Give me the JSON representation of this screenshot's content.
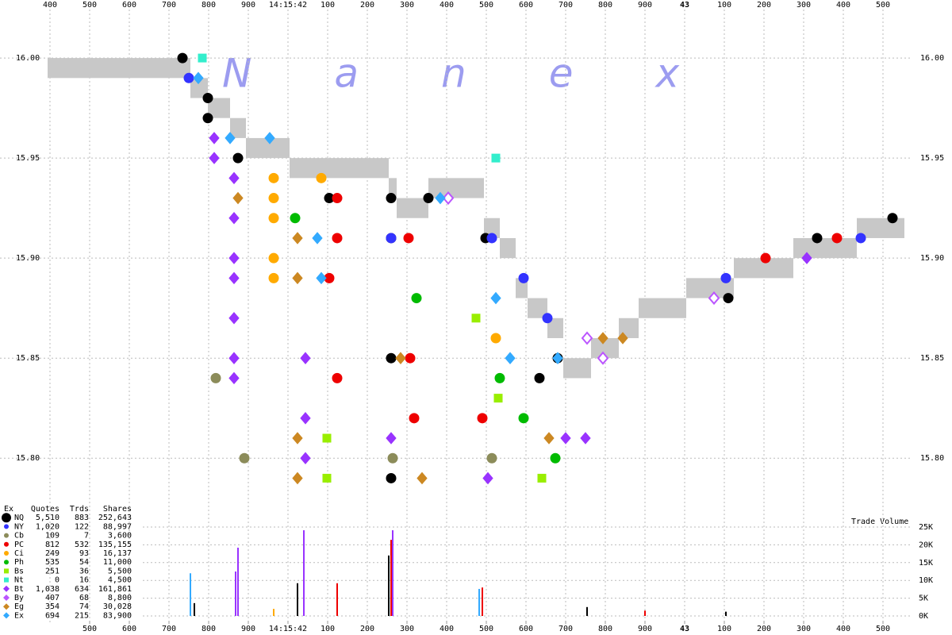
{
  "chart_data": [
    {
      "type": "scatter",
      "watermark": "Nanex",
      "xlim": [
        41.274,
        43.674
      ],
      "ylim": [
        15.787,
        16.029
      ],
      "xticks": [
        {
          "value": 41.4,
          "label": "400"
        },
        {
          "value": 41.5,
          "label": "500"
        },
        {
          "value": 41.6,
          "label": "600"
        },
        {
          "value": 41.7,
          "label": "700"
        },
        {
          "value": 41.8,
          "label": "800"
        },
        {
          "value": 41.9,
          "label": "900"
        },
        {
          "value": 42,
          "label": "14:15:42"
        },
        {
          "value": 42.1,
          "label": "100"
        },
        {
          "value": 42.2,
          "label": "200"
        },
        {
          "value": 42.3,
          "label": "300"
        },
        {
          "value": 42.4,
          "label": "400"
        },
        {
          "value": 42.5,
          "label": "500"
        },
        {
          "value": 42.6,
          "label": "600"
        },
        {
          "value": 42.7,
          "label": "700"
        },
        {
          "value": 42.8,
          "label": "800"
        },
        {
          "value": 42.9,
          "label": "900"
        },
        {
          "value": 43,
          "label": "43"
        },
        {
          "value": 43.1,
          "label": "100"
        },
        {
          "value": 43.2,
          "label": "200"
        },
        {
          "value": 43.3,
          "label": "300"
        },
        {
          "value": 43.4,
          "label": "400"
        },
        {
          "value": 43.5,
          "label": "500"
        }
      ],
      "yticks": [
        {
          "value": 16,
          "label": "16.00"
        },
        {
          "value": 15.95,
          "label": "15.95"
        },
        {
          "value": 15.9,
          "label": "15.90"
        },
        {
          "value": 15.85,
          "label": "15.85"
        },
        {
          "value": 15.8,
          "label": "15.80"
        }
      ],
      "grid": true,
      "nbbo": {
        "color": "#c8c8c8",
        "x": [
          41.394,
          41.754,
          41.798,
          41.854,
          41.894,
          42.004,
          42.254,
          42.274,
          42.354,
          42.494,
          42.534,
          42.574,
          42.604,
          42.654,
          42.694,
          42.764,
          42.834,
          42.884,
          43.004,
          43.124,
          43.274,
          43.434,
          43.554
        ],
        "ask": [
          16.0,
          15.99,
          15.98,
          15.97,
          15.96,
          15.95,
          15.94,
          15.93,
          15.94,
          15.92,
          15.91,
          15.89,
          15.88,
          15.87,
          15.85,
          15.86,
          15.87,
          15.88,
          15.89,
          15.9,
          15.91,
          15.92
        ],
        "bid": [
          15.99,
          15.98,
          15.97,
          15.96,
          15.95,
          15.94,
          15.93,
          15.92,
          15.93,
          15.91,
          15.9,
          15.88,
          15.87,
          15.86,
          15.84,
          15.85,
          15.86,
          15.87,
          15.88,
          15.89,
          15.9,
          15.91
        ]
      },
      "series": [
        {
          "name": "NQ",
          "color": "#000000",
          "marker": "circle",
          "x": [
            41.734,
            41.798,
            41.798,
            41.874,
            42.104,
            42.26,
            42.26,
            42.26,
            42.26,
            42.354,
            42.498,
            42.634,
            42.68,
            43.11,
            43.334,
            43.524
          ],
          "values": [
            16.0,
            15.98,
            15.97,
            15.95,
            15.93,
            15.93,
            15.91,
            15.85,
            15.79,
            15.93,
            15.91,
            15.84,
            15.85,
            15.88,
            15.91,
            15.92
          ]
        },
        {
          "name": "NY",
          "color": "#3333ff",
          "marker": "circle",
          "x": [
            41.75,
            42.26,
            42.514,
            42.594,
            42.654,
            43.104,
            43.444
          ],
          "values": [
            15.99,
            15.91,
            15.91,
            15.89,
            15.87,
            15.89,
            15.91
          ]
        },
        {
          "name": "Cb",
          "color": "#8c8c5a",
          "marker": "circle",
          "x": [
            41.818,
            41.89,
            42.264,
            42.514
          ],
          "values": [
            15.84,
            15.8,
            15.8,
            15.8
          ]
        },
        {
          "name": "PC",
          "color": "#ee0000",
          "marker": "circle",
          "x": [
            42.104,
            42.124,
            42.124,
            42.124,
            42.304,
            42.308,
            42.318,
            42.49,
            43.204,
            43.384
          ],
          "values": [
            15.89,
            15.93,
            15.91,
            15.84,
            15.91,
            15.85,
            15.82,
            15.82,
            15.9,
            15.91
          ]
        },
        {
          "name": "Ci",
          "color": "#ffaa00",
          "marker": "circle",
          "x": [
            41.964,
            41.964,
            41.964,
            41.964,
            41.964,
            42.084,
            42.524
          ],
          "values": [
            15.94,
            15.93,
            15.92,
            15.9,
            15.89,
            15.94,
            15.86
          ]
        },
        {
          "name": "Ph",
          "color": "#00bb00",
          "marker": "circle",
          "x": [
            42.018,
            42.324,
            42.534,
            42.594,
            42.674
          ],
          "values": [
            15.92,
            15.88,
            15.84,
            15.82,
            15.8
          ]
        },
        {
          "name": "Bs",
          "color": "#99ee00",
          "marker": "square",
          "x": [
            42.098,
            42.098,
            42.474,
            42.53,
            42.64
          ],
          "values": [
            15.81,
            15.79,
            15.87,
            15.83,
            15.79
          ]
        },
        {
          "name": "Nt",
          "color": "#33eecc",
          "marker": "square",
          "x": [
            41.784,
            42.524
          ],
          "values": [
            16.0,
            15.95
          ]
        },
        {
          "name": "Bt",
          "color": "#9933ff",
          "marker": "diamond",
          "x": [
            41.814,
            41.814,
            41.864,
            41.864,
            41.864,
            41.864,
            41.864,
            41.864,
            41.864,
            42.044,
            42.044,
            42.044,
            42.26,
            42.504,
            42.7,
            42.75,
            43.308
          ],
          "values": [
            15.96,
            15.95,
            15.94,
            15.92,
            15.9,
            15.89,
            15.87,
            15.85,
            15.84,
            15.85,
            15.82,
            15.8,
            15.81,
            15.79,
            15.81,
            15.81,
            15.9
          ]
        },
        {
          "name": "By",
          "color": "#bb55ff",
          "marker": "diamond",
          "open": true,
          "x": [
            42.404,
            42.754,
            42.794,
            43.074
          ],
          "values": [
            15.93,
            15.86,
            15.85,
            15.88
          ]
        },
        {
          "name": "Eg",
          "color": "#cc8822",
          "marker": "diamond",
          "x": [
            41.874,
            42.024,
            42.024,
            42.024,
            42.024,
            42.284,
            42.338,
            42.658,
            42.794,
            42.844
          ],
          "values": [
            15.93,
            15.91,
            15.89,
            15.81,
            15.79,
            15.85,
            15.79,
            15.81,
            15.86,
            15.86
          ]
        },
        {
          "name": "Ex",
          "color": "#33aaff",
          "marker": "diamond",
          "x": [
            41.774,
            41.854,
            41.954,
            42.074,
            42.084,
            42.384,
            42.524,
            42.56,
            42.68
          ],
          "values": [
            15.99,
            15.96,
            15.96,
            15.91,
            15.89,
            15.93,
            15.88,
            15.85,
            15.85
          ]
        }
      ],
      "legend_stats": {
        "columns": [
          "Ex",
          "Quotes",
          "Trds",
          "Shares"
        ],
        "rows": [
          [
            "5,510",
            "883",
            "252,643"
          ],
          [
            "1,020",
            "122",
            "88,997"
          ],
          [
            "109",
            "7",
            "3,600"
          ],
          [
            "812",
            "532",
            "135,155"
          ],
          [
            "249",
            "93",
            "16,137"
          ],
          [
            "535",
            "54",
            "11,000"
          ],
          [
            "251",
            "36",
            "5,500"
          ],
          [
            "0",
            "16",
            "4,500"
          ],
          [
            "1,038",
            "634",
            "161,861"
          ],
          [
            "407",
            "68",
            "8,800"
          ],
          [
            "354",
            "74",
            "30,028"
          ],
          [
            "694",
            "215",
            "83,900"
          ]
        ]
      }
    },
    {
      "type": "bar",
      "title": "Trade Volume",
      "xlim": [
        41.274,
        43.674
      ],
      "ylim": [
        0,
        25000
      ],
      "xticks": [
        {
          "value": 41.5,
          "label": "500"
        },
        {
          "value": 41.6,
          "label": "600"
        },
        {
          "value": 41.7,
          "label": "700"
        },
        {
          "value": 41.8,
          "label": "800"
        },
        {
          "value": 41.9,
          "label": "900"
        },
        {
          "value": 42,
          "label": "14:15:42"
        },
        {
          "value": 42.1,
          "label": "100"
        },
        {
          "value": 42.2,
          "label": "200"
        },
        {
          "value": 42.3,
          "label": "300"
        },
        {
          "value": 42.4,
          "label": "400"
        },
        {
          "value": 42.5,
          "label": "500"
        },
        {
          "value": 42.6,
          "label": "600"
        },
        {
          "value": 42.7,
          "label": "700"
        },
        {
          "value": 42.8,
          "label": "800"
        },
        {
          "value": 42.9,
          "label": "900"
        },
        {
          "value": 43,
          "label": "43"
        },
        {
          "value": 43.1,
          "label": "100"
        },
        {
          "value": 43.2,
          "label": "200"
        },
        {
          "value": 43.3,
          "label": "300"
        },
        {
          "value": 43.4,
          "label": "400"
        },
        {
          "value": 43.5,
          "label": "500"
        }
      ],
      "yticks": [
        {
          "value": 25000,
          "label": "25K"
        },
        {
          "value": 20000,
          "label": "20K"
        },
        {
          "value": 15000,
          "label": "15K"
        },
        {
          "value": 10000,
          "label": "10K"
        },
        {
          "value": 5000,
          "label": "5K"
        },
        {
          "value": 0,
          "label": "0K"
        }
      ],
      "series": [
        {
          "color": "#000000",
          "x": [
            41.764,
            42.024,
            42.254,
            42.754,
            43.104
          ],
          "values": [
            3600,
            9200,
            17000,
            2500,
            1200
          ]
        },
        {
          "color": "#ee0000",
          "x": [
            42.124,
            42.26,
            42.49,
            42.9
          ],
          "values": [
            9200,
            21400,
            8000,
            1500
          ]
        },
        {
          "color": "#ffaa00",
          "x": [
            41.754,
            41.964
          ],
          "values": [
            6900,
            2000
          ]
        },
        {
          "color": "#9933ff",
          "x": [
            41.868,
            41.874,
            42.04,
            42.264
          ],
          "values": [
            12500,
            19200,
            24100,
            24100
          ]
        },
        {
          "color": "#33aaff",
          "x": [
            41.754,
            42.482
          ],
          "values": [
            12000,
            7600
          ]
        }
      ]
    }
  ]
}
